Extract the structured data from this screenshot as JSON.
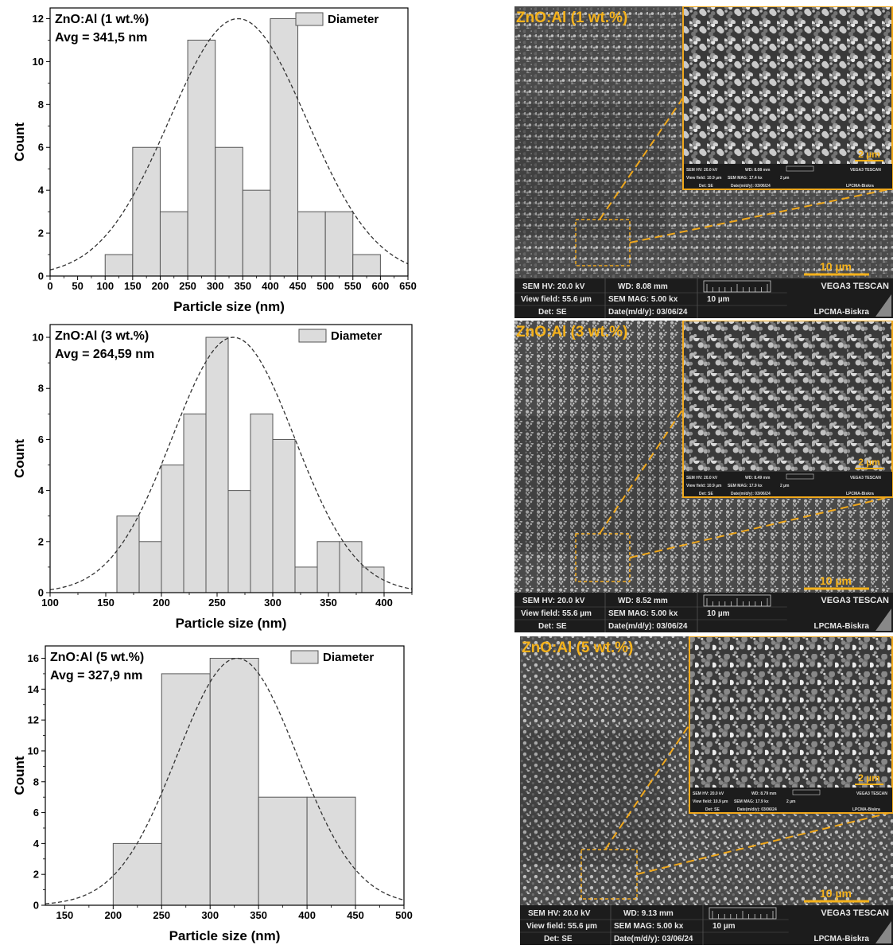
{
  "chart_data": [
    {
      "type": "bar",
      "subtype": "histogram",
      "title": "",
      "annotation_lines": [
        "ZnO:Al (1 wt.%)",
        "Avg = 341,5 nm"
      ],
      "xlabel": "Particle size (nm)",
      "ylabel": "Count",
      "legend": "Diameter",
      "legend_position": "top-right",
      "xlim": [
        0,
        650
      ],
      "ylim": [
        0,
        12.5
      ],
      "xticks": [
        0,
        50,
        100,
        150,
        200,
        250,
        300,
        350,
        400,
        450,
        500,
        550,
        600,
        650
      ],
      "yticks": [
        0,
        2,
        4,
        6,
        8,
        10,
        12
      ],
      "bins": [
        [
          100,
          150
        ],
        [
          150,
          200
        ],
        [
          200,
          250
        ],
        [
          250,
          300
        ],
        [
          300,
          350
        ],
        [
          350,
          400
        ],
        [
          400,
          450
        ],
        [
          450,
          500
        ],
        [
          500,
          550
        ],
        [
          550,
          600
        ]
      ],
      "values": [
        1,
        6,
        3,
        11,
        6,
        4,
        12,
        3,
        3,
        1
      ],
      "fit": {
        "type": "normal",
        "mean": 341.5,
        "sd": 125,
        "peak": 12
      },
      "bar_color": "#dcdcdc",
      "grid": false
    },
    {
      "type": "bar",
      "subtype": "histogram",
      "title": "",
      "annotation_lines": [
        "ZnO:Al (3 wt.%)",
        "Avg = 264,59 nm"
      ],
      "xlabel": "Particle size (nm)",
      "ylabel": "Count",
      "legend": "Diameter",
      "legend_position": "top-right",
      "xlim": [
        100,
        425
      ],
      "ylim": [
        0,
        10.5
      ],
      "xticks": [
        100,
        150,
        200,
        250,
        300,
        350,
        400
      ],
      "yticks": [
        0,
        2,
        4,
        6,
        8,
        10
      ],
      "bins": [
        [
          160,
          180
        ],
        [
          180,
          200
        ],
        [
          200,
          220
        ],
        [
          220,
          240
        ],
        [
          240,
          260
        ],
        [
          260,
          280
        ],
        [
          280,
          300
        ],
        [
          300,
          320
        ],
        [
          320,
          340
        ],
        [
          340,
          360
        ],
        [
          360,
          380
        ],
        [
          380,
          400
        ]
      ],
      "values": [
        3,
        2,
        5,
        7,
        10,
        4,
        7,
        6,
        1,
        2,
        2,
        1
      ],
      "fit": {
        "type": "normal",
        "mean": 264.59,
        "sd": 55,
        "peak": 10
      },
      "bar_color": "#dcdcdc",
      "grid": false
    },
    {
      "type": "bar",
      "subtype": "histogram",
      "title": "",
      "annotation_lines": [
        "ZnO:Al (5 wt.%)",
        "Avg = 327,9 nm"
      ],
      "xlabel": "Particle size (nm)",
      "ylabel": "Count",
      "legend": "Diameter",
      "legend_position": "top-right",
      "xlim": [
        130,
        500
      ],
      "ylim": [
        0,
        16.8
      ],
      "xticks": [
        150,
        200,
        250,
        300,
        350,
        400,
        450,
        500
      ],
      "yticks": [
        0,
        2,
        4,
        6,
        8,
        10,
        12,
        14,
        16
      ],
      "bins": [
        [
          200,
          250
        ],
        [
          250,
          300
        ],
        [
          300,
          350
        ],
        [
          350,
          400
        ],
        [
          400,
          450
        ]
      ],
      "values": [
        4,
        15,
        16,
        7,
        7
      ],
      "fit": {
        "type": "normal",
        "mean": 327.9,
        "sd": 62,
        "peak": 16
      },
      "bar_color": "#dcdcdc",
      "grid": false
    }
  ],
  "sem_images": [
    {
      "label": "ZnO:Al (1 wt.%)",
      "scale_main": "10 µm",
      "scale_inset": "2 µm",
      "info": {
        "hv": "SEM HV: 20.0 kV",
        "wd": "WD: 8.08 mm",
        "brand": "VEGA3 TESCAN",
        "vf": "View field: 55.6 µm",
        "mag": "SEM MAG: 5.00 kx",
        "sb": "10 µm",
        "det": "Det: SE",
        "date": "Date(m/d/y): 03/06/24",
        "lab": "LPCMA-Biskra"
      },
      "inset_info": {
        "hv": "SEM HV: 20.0 kV",
        "wd": "WD: 8.08 mm",
        "brand": "VEGA3 TESCAN",
        "vf": "View field: 10.9 µm",
        "mag": "SEM MAG: 17.4 kx",
        "sb": "2 µm",
        "det": "Det: SE",
        "date": "Date(m/d/y): 03/06/24",
        "lab": "LPCMA-Biskra"
      }
    },
    {
      "label": "ZnO:Al (3 wt.%)",
      "scale_main": "10 µm",
      "scale_inset": "2 µm",
      "info": {
        "hv": "SEM HV: 20.0 kV",
        "wd": "WD: 8.52 mm",
        "brand": "VEGA3 TESCAN",
        "vf": "View field: 55.6 µm",
        "mag": "SEM MAG: 5.00 kx",
        "sb": "10 µm",
        "det": "Det: SE",
        "date": "Date(m/d/y): 03/06/24",
        "lab": "LPCMA-Biskra"
      },
      "inset_info": {
        "hv": "SEM HV: 20.0 kV",
        "wd": "WD: 8.49 mm",
        "brand": "VEGA3 TESCAN",
        "vf": "View field: 10.9 µm",
        "mag": "SEM MAG: 17.9 kx",
        "sb": "2 µm",
        "det": "Det: SE",
        "date": "Date(m/d/y): 03/06/24",
        "lab": "LPCMA-Biskra"
      }
    },
    {
      "label": "ZnO:Al (5 wt.%)",
      "scale_main": "10 µm",
      "scale_inset": "2 µm",
      "info": {
        "hv": "SEM HV: 20.0 kV",
        "wd": "WD: 9.13 mm",
        "brand": "VEGA3 TESCAN",
        "vf": "View field: 55.6 µm",
        "mag": "SEM MAG: 5.00 kx",
        "sb": "10 µm",
        "det": "Det: SE",
        "date": "Date(m/d/y): 03/06/24",
        "lab": "LPCMA-Biskra"
      },
      "inset_info": {
        "hv": "SEM HV: 20.0 kV",
        "wd": "WD: 8.79 mm",
        "brand": "VEGA3 TESCAN",
        "vf": "View field: 10.9 µm",
        "mag": "SEM MAG: 17.9 kx",
        "sb": "2 µm",
        "det": "Det: SE",
        "date": "Date(m/d/y): 03/06/24",
        "lab": "LPCMA-Biskra"
      }
    }
  ],
  "colors": {
    "bar_fill": "#dcdcdc",
    "bar_stroke": "#555555",
    "fit_line": "#333333",
    "sem_label": "#f5b21b",
    "sem_zoom_lines": "#f0a81c",
    "sem_infobar": "#1c1c1c"
  }
}
